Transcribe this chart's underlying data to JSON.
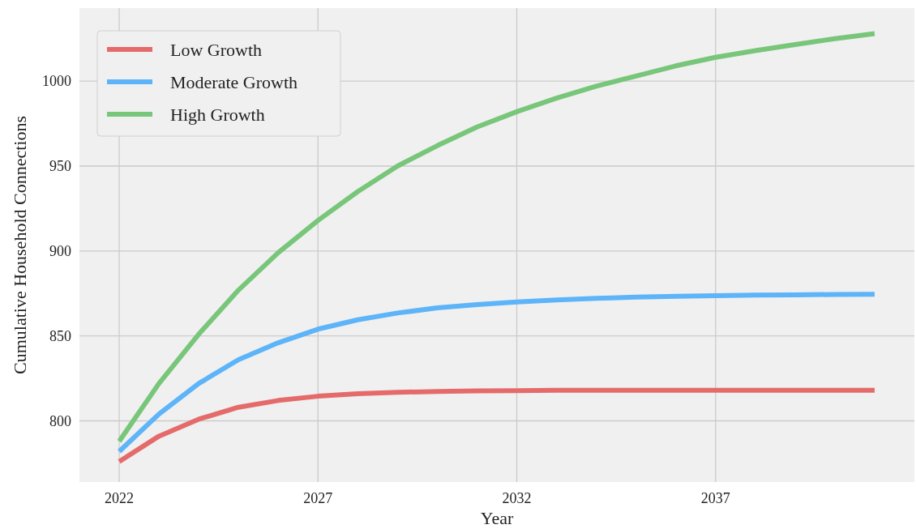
{
  "chart_data": {
    "type": "line",
    "xlabel": "Year",
    "ylabel": "Cumulative Household Connections",
    "x": [
      2022,
      2023,
      2024,
      2025,
      2026,
      2027,
      2028,
      2029,
      2030,
      2031,
      2032,
      2033,
      2034,
      2035,
      2036,
      2037,
      2038,
      2039,
      2040,
      2041
    ],
    "series": [
      {
        "name": "Low Growth",
        "color": "#e56b6b",
        "values": [
          776,
          791,
          801,
          808,
          812,
          814.5,
          816,
          816.8,
          817.3,
          817.6,
          817.8,
          818,
          818,
          818,
          818,
          818,
          818,
          818,
          818,
          818
        ]
      },
      {
        "name": "Moderate Growth",
        "color": "#5db4f8",
        "values": [
          782,
          804,
          822,
          836,
          846,
          854,
          859.5,
          863.5,
          866.5,
          868.5,
          870,
          871.2,
          872.2,
          872.8,
          873.3,
          873.7,
          874,
          874.2,
          874.4,
          874.5
        ]
      },
      {
        "name": "High Growth",
        "color": "#78c679",
        "values": [
          788,
          822,
          851,
          877,
          899,
          918,
          935,
          950,
          962,
          973,
          982,
          990,
          997,
          1003,
          1009,
          1014,
          1018,
          1021.5,
          1025,
          1028
        ]
      }
    ],
    "xlim": [
      2021,
      2042
    ],
    "xticks": [
      2022,
      2027,
      2032,
      2037
    ],
    "ylim": [
      764,
      1043
    ],
    "yticks": [
      800,
      850,
      900,
      950,
      1000
    ],
    "grid": true,
    "legend": "top left",
    "line_style": "solid",
    "marker": "none"
  }
}
